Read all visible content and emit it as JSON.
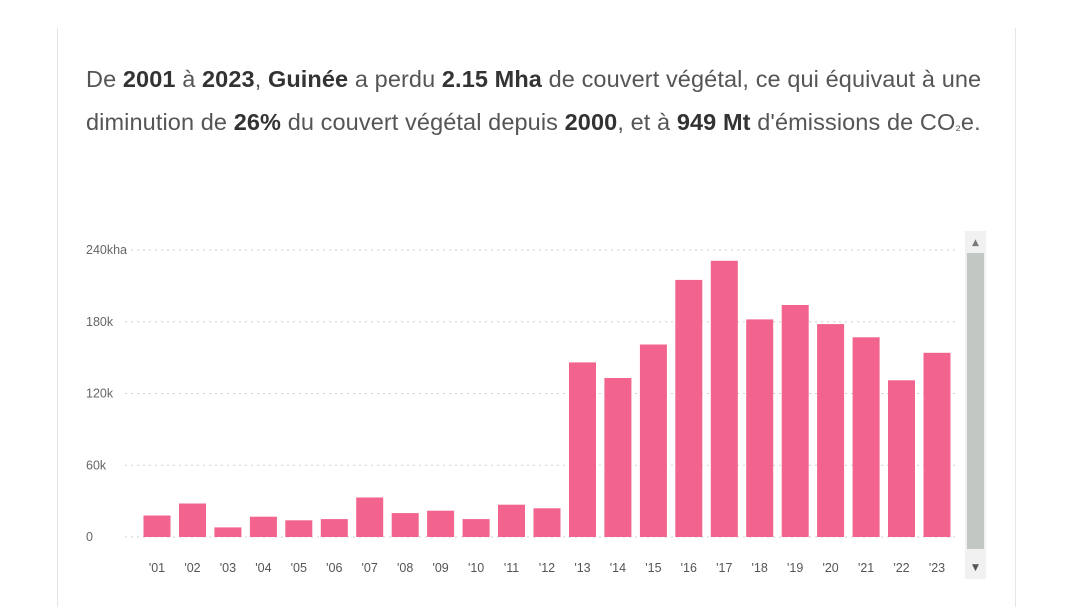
{
  "summary": {
    "p1": "De ",
    "start_year": "2001",
    "p2": " à ",
    "end_year": "2023",
    "p3": ", ",
    "country": "Guinée",
    "p4": " a perdu ",
    "loss": "2.15 Mha",
    "p5": " de couvert végétal, ce qui équivaut à une diminution de ",
    "percent": "26%",
    "p6": " du couvert végétal depuis ",
    "base_year": "2000",
    "p7": ", et à ",
    "emissions": "949 Mt",
    "p8": " d'émissions de CO",
    "sub": "₂",
    "p9": "e."
  },
  "chart_data": {
    "type": "bar",
    "categories": [
      "'01",
      "'02",
      "'03",
      "'04",
      "'05",
      "'06",
      "'07",
      "'08",
      "'09",
      "'10",
      "'11",
      "'12",
      "'13",
      "'14",
      "'15",
      "'16",
      "'17",
      "'18",
      "'19",
      "'20",
      "'21",
      "'22",
      "'23"
    ],
    "values": [
      18000,
      28000,
      8000,
      17000,
      14000,
      15000,
      33000,
      20000,
      22000,
      15000,
      27000,
      24000,
      146000,
      133000,
      161000,
      215000,
      231000,
      182000,
      194000,
      178000,
      167000,
      131000,
      154000
    ],
    "yticks": [
      0,
      60000,
      120000,
      180000,
      240000
    ],
    "ytick_labels": [
      "0",
      "60k",
      "120k",
      "180k",
      "240kha"
    ],
    "ylim": [
      0,
      240000
    ],
    "bar_color": "#f2638d",
    "grid": true,
    "grid_color": "#cfcfcf"
  },
  "scrollbar": {
    "up_arrow": "▲",
    "down_arrow": "▼",
    "thumb_color": "#c2c7c4"
  }
}
